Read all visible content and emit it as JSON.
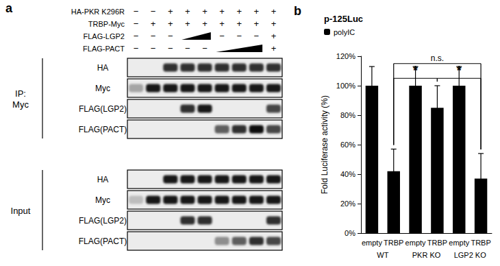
{
  "panel_a": {
    "label": "a",
    "treatments": [
      {
        "name": "HA-PKR K296R",
        "lanes": [
          "−",
          "−",
          "+",
          "+",
          "+",
          "+",
          "+",
          "+",
          "+"
        ]
      },
      {
        "name": "TRBP-Myc",
        "lanes": [
          "−",
          "+",
          "+",
          "+",
          "+",
          "+",
          "+",
          "+",
          "+"
        ]
      },
      {
        "name": "FLAG-LGP2",
        "lanes": [
          "−",
          "−",
          "−",
          null,
          null,
          "−",
          "−",
          "−",
          "+"
        ],
        "ramp": [
          3,
          4
        ]
      },
      {
        "name": "FLAG-PACT",
        "lanes": [
          "−",
          "−",
          "−",
          "−",
          "−",
          null,
          null,
          null,
          "+"
        ],
        "ramp": [
          5,
          7
        ]
      }
    ],
    "sections": [
      {
        "label": [
          "IP:",
          "Myc"
        ],
        "blots": [
          {
            "label": "HA",
            "bands": [
              0,
              0,
              0.8,
              0.8,
              0.8,
              0.8,
              0.8,
              0.8,
              0.8
            ]
          },
          {
            "label": "Myc",
            "bands": [
              0.3,
              0.9,
              0.9,
              0.9,
              0.9,
              0.9,
              0.9,
              0.9,
              0.9
            ]
          },
          {
            "label": "FLAG(LGP2)",
            "bands": [
              0,
              0,
              0,
              0.8,
              0.9,
              0,
              0,
              0,
              0.7
            ]
          },
          {
            "label": "FLAG(PACT)",
            "bands": [
              0,
              0,
              0,
              0,
              0,
              0.6,
              0.8,
              0.95,
              0.7
            ]
          }
        ]
      },
      {
        "label": [
          "Input"
        ],
        "blots": [
          {
            "label": "HA",
            "bands": [
              0,
              0,
              0.9,
              0.9,
              0.9,
              0.9,
              0.9,
              0.9,
              0.9
            ]
          },
          {
            "label": "Myc",
            "bands": [
              0.2,
              0.9,
              0.9,
              0.9,
              0.9,
              0.9,
              0.9,
              0.9,
              0.9
            ]
          },
          {
            "label": "FLAG(LGP2)",
            "bands": [
              0,
              0,
              0,
              0.8,
              0.8,
              0,
              0,
              0,
              0.8
            ]
          },
          {
            "label": "FLAG(PACT)",
            "bands": [
              0,
              0,
              0,
              0,
              0,
              0.4,
              0.6,
              0.8,
              0.7
            ]
          }
        ]
      }
    ]
  },
  "chart_data": {
    "type": "bar",
    "panel_label": "b",
    "title": "p-125Luc",
    "y_label": "Fold Luciferase activity (%)",
    "categories": [
      "empty",
      "TRBP",
      "empty",
      "TRBP",
      "empty",
      "TRBP"
    ],
    "groups": [
      "WT",
      "PKR KO",
      "LGP2 KO"
    ],
    "series": [
      {
        "name": "polyIC",
        "color": "#000000",
        "values": [
          100,
          42,
          100,
          85,
          100,
          37
        ],
        "errors": [
          13,
          15,
          13,
          15,
          13,
          17
        ]
      }
    ],
    "ylim": [
      0,
      120
    ],
    "yticks": [
      {
        "value": 0,
        "label": "0%"
      },
      {
        "value": 20,
        "label": "20%"
      },
      {
        "value": 40,
        "label": "40%"
      },
      {
        "value": 60,
        "label": "60%"
      },
      {
        "value": 80,
        "label": "80%"
      },
      {
        "value": 100,
        "label": "100%"
      },
      {
        "value": 120,
        "label": "120%"
      }
    ],
    "comparisons": [
      {
        "from": 1,
        "to": 3,
        "label": "*",
        "y": 105
      },
      {
        "from": 3,
        "to": 5,
        "label": "*",
        "y": 105
      },
      {
        "from": 1,
        "to": 5,
        "label": "n.s.",
        "y": 115
      }
    ],
    "legend": "top-left",
    "grid": false
  }
}
